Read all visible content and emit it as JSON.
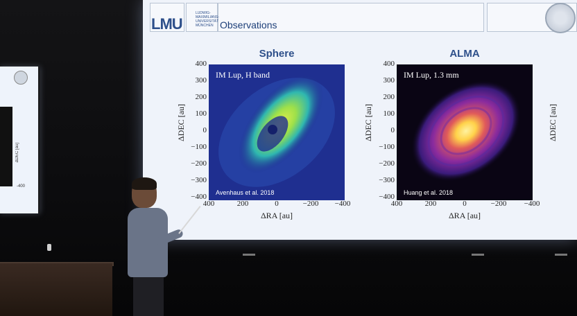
{
  "slide": {
    "logo": "LMU",
    "university": "LUDWIG- MAXIMILIANS- UNIVERSITÄT MÜNCHEN",
    "title": "Observations"
  },
  "panels": [
    {
      "title": "Sphere",
      "label": "IM Lup, H band",
      "reference": "Avenhaus et al. 2018",
      "colormap": [
        "#1a2a86",
        "#2f6fd0",
        "#2fb7b0",
        "#9ee04a",
        "#e8f04a"
      ]
    },
    {
      "title": "ALMA",
      "label": "IM Lup, 1.3 mm",
      "reference": "Huang et al. 2018",
      "colormap": [
        "#0a0514",
        "#3a1b7a",
        "#8a2b9e",
        "#e05a5a",
        "#ffd24a"
      ]
    }
  ],
  "axes": {
    "yticks": [
      "400",
      "300",
      "200",
      "100",
      "0",
      "−100",
      "−200",
      "−300",
      "−400"
    ],
    "xticks": [
      "400",
      "200",
      "0",
      "−200",
      "−400"
    ],
    "ylabel": "ΔDEC [au]",
    "xlabel": "ΔRA [au]"
  },
  "side_screen": {
    "tick": "-400",
    "axis": "ΔDEC [au]"
  }
}
